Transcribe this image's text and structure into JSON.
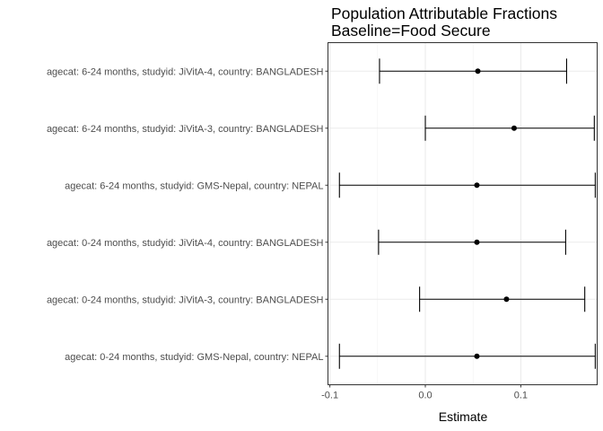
{
  "chart_data": {
    "type": "forest",
    "title": "Population Attributable Fractions",
    "subtitle": "Baseline=Food Secure",
    "xlabel": "Estimate",
    "ylabel": "",
    "xlim": [
      -0.102,
      0.18
    ],
    "x_ticks": [
      -0.1,
      0.0,
      0.1
    ],
    "x_tick_labels": [
      "-0.1",
      "0.0",
      "0.1"
    ],
    "grid": true,
    "categories": [
      "agecat: 6-24 months, studyid: JiVitA-4, country: BANGLADESH",
      "agecat: 6-24 months, studyid: JiVitA-3, country: BANGLADESH",
      "agecat: 6-24 months, studyid: GMS-Nepal, country: NEPAL",
      "agecat: 0-24 months, studyid: JiVitA-4, country: BANGLADESH",
      "agecat: 0-24 months, studyid: JiVitA-3, country: BANGLADESH",
      "agecat: 0-24 months, studyid: GMS-Nepal, country: NEPAL"
    ],
    "estimates": [
      0.055,
      0.093,
      0.054,
      0.054,
      0.085,
      0.054
    ],
    "ci_lower": [
      -0.048,
      0.0,
      -0.09,
      -0.049,
      -0.006,
      -0.09
    ],
    "ci_upper": [
      0.148,
      0.177,
      0.178,
      0.147,
      0.167,
      0.178
    ]
  }
}
